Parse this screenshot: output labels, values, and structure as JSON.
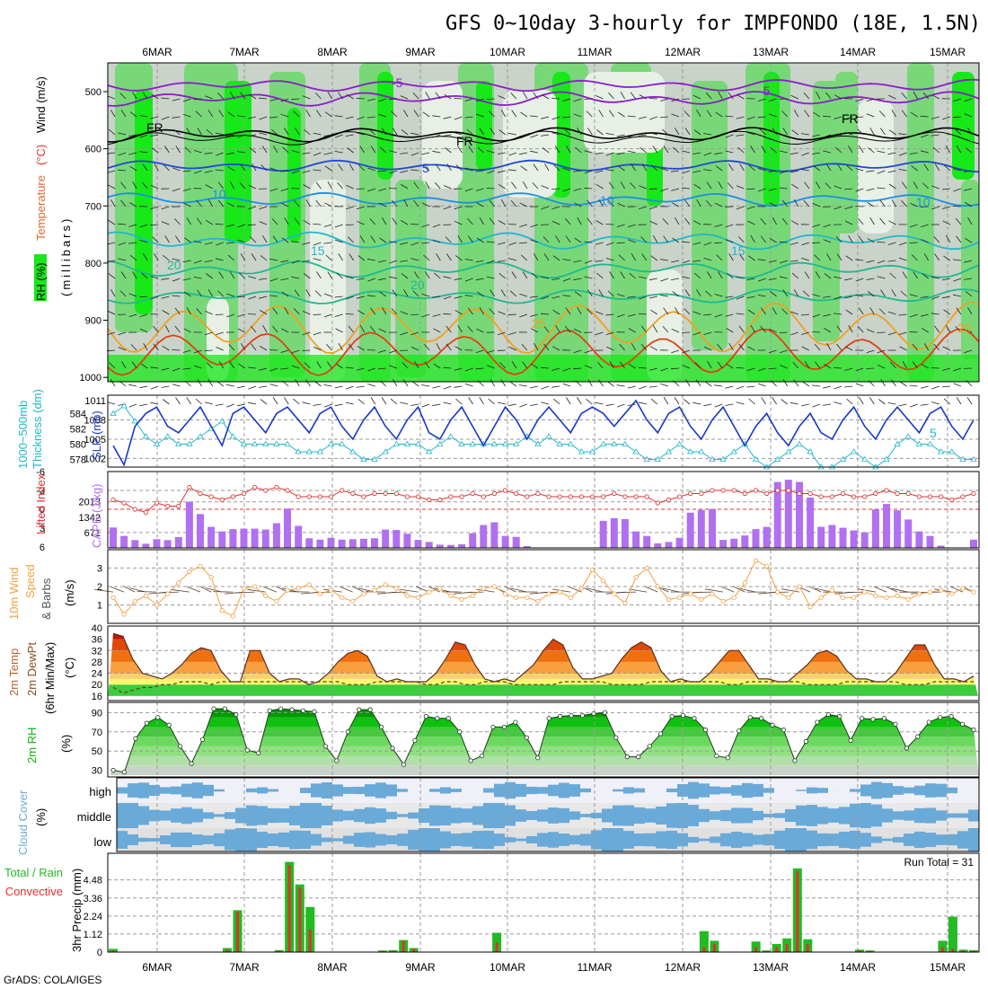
{
  "title": "GFS 0~10day 3-hourly for IMPFONDO (18E, 1.5N)",
  "date_labels": [
    "6MAR",
    "7MAR",
    "8MAR",
    "9MAR",
    "10MAR",
    "11MAR",
    "12MAR",
    "13MAR",
    "14MAR",
    "15MAR"
  ],
  "credit": "GrADS: COLA/IGES",
  "colors": {
    "rh_light": "#c9d3c9",
    "rh_pale": "#e8f0e6",
    "rh_green": "#78d878",
    "rh_bright": "#17e817",
    "temp_purple": "#8a1dc8",
    "temp_blue1": "#1f48d2",
    "temp_blue2": "#1c8fe0",
    "temp_cyan": "#21b8c8",
    "temp_teal": "#20b890",
    "temp_orange": "#f0a020",
    "temp_red": "#e04010",
    "temp_magenta": "#e0108a",
    "thickness": "#20b8c8",
    "slp": "#1838c8",
    "lifted_index": "#e03030",
    "cape": "#b070f0",
    "wind_speed": "#f0a040",
    "rh2m": "#10b010",
    "cloud": "#6aaad8",
    "precip_total": "#22bb22",
    "precip_conv": "#e03030"
  },
  "panel_labels": {
    "upper": {
      "rh": "RH (%)",
      "temperature": "Temperature",
      "temp_unit": "(°C)",
      "wind": "Wind (m/s)",
      "millibars": "(millibars)"
    },
    "slp": {
      "thickness": "1000~500mb",
      "thickness2": "Thickness (dm)",
      "slp": "SLP (mb)"
    },
    "cape": {
      "li": "Lifted Index",
      "cape": "CAPE (J/kg)"
    },
    "wind10": {
      "l1": "10m Wind",
      "l2": "Speed",
      "l3": "& Barbs",
      "unit": "(m/s)"
    },
    "temp2m": {
      "l1": "2m Temp",
      "l2": "2m DewPt",
      "l3": "(6hr Min/Max)",
      "unit": "(°C)"
    },
    "rh2m": {
      "l1": "2m RH",
      "unit": "(%)"
    },
    "cloud": {
      "l1": "Cloud Cover",
      "unit": "(%)",
      "levels": [
        "high",
        "middle",
        "low"
      ]
    },
    "precip": {
      "total": "Total / Rain",
      "conv": "Convective",
      "l3": "3hr Precip (mm)",
      "run_total": "Run Total = 31"
    }
  },
  "upper_air": {
    "pressure_ticks": [
      "500",
      "600",
      "700",
      "800",
      "900",
      "1000"
    ],
    "contour_labels": [
      "-5",
      "-5",
      "FR",
      "FR",
      "FR",
      "5",
      "10",
      "10",
      "15",
      "15",
      "20",
      "20",
      "25",
      "20",
      "10",
      "5"
    ]
  },
  "chart_data": [
    {
      "type": "line",
      "name": "SLP & Thickness",
      "x_hours_from_start_step": 3,
      "series": [
        {
          "name": "SLP (mb)",
          "axis": "right",
          "values": [
            1004,
            1001,
            1007,
            1009,
            1010,
            1007,
            1006,
            1008,
            1010,
            1007,
            1004,
            1009,
            1010,
            1008,
            1006,
            1009,
            1010,
            1008,
            1006,
            1009,
            1010,
            1007,
            1005,
            1008,
            1010,
            1007,
            1005,
            1008,
            1010,
            1006,
            1005,
            1008,
            1010,
            1007,
            1004,
            1007,
            1010,
            1008,
            1005,
            1008,
            1010,
            1008,
            1006,
            1009,
            1010,
            1009,
            1007,
            1009,
            1011,
            1008,
            1006,
            1009,
            1010,
            1007,
            1005,
            1008,
            1010,
            1007,
            1004,
            1007,
            1009,
            1006,
            1004,
            1007,
            1009,
            1006,
            1005,
            1008,
            1010,
            1007,
            1005,
            1008,
            1010,
            1008,
            1006,
            1009,
            1010,
            1007,
            1005,
            1008
          ]
        },
        {
          "name": "Thickness (dm)",
          "axis": "left",
          "values": [
            584,
            585,
            583,
            581,
            580,
            581,
            580,
            580,
            581,
            582,
            583,
            581,
            580,
            580,
            580,
            580,
            580,
            579,
            579,
            579,
            580,
            580,
            579,
            578,
            578,
            579,
            580,
            580,
            580,
            579,
            580,
            581,
            580,
            580,
            580,
            580,
            580,
            580,
            581,
            580,
            581,
            580,
            580,
            579,
            579,
            580,
            580,
            580,
            579,
            578,
            578,
            579,
            580,
            579,
            579,
            578,
            578,
            579,
            580,
            578,
            577,
            578,
            579,
            580,
            579,
            577,
            577,
            578,
            579,
            578,
            577,
            578,
            580,
            581,
            580,
            580,
            579,
            579,
            578,
            578
          ]
        }
      ],
      "left_axis": {
        "label": "Thickness (dm)",
        "ticks": [
          578,
          580,
          582,
          584
        ]
      },
      "right_axis": {
        "label": "SLP (mb)",
        "ticks": [
          1002,
          1005,
          1008,
          1011
        ]
      }
    },
    {
      "type": "bar",
      "name": "CAPE & Lifted Index",
      "series": [
        {
          "name": "CAPE (J/kg)",
          "values": [
            890,
            520,
            340,
            180,
            380,
            340,
            470,
            2013,
            1480,
            920,
            720,
            820,
            840,
            840,
            800,
            1080,
            1720,
            960,
            420,
            360,
            440,
            360,
            380,
            400,
            420,
            800,
            780,
            620,
            350,
            260,
            140,
            130,
            160,
            640,
            1000,
            1120,
            520,
            480,
            80,
            0,
            0,
            0,
            0,
            0,
            0,
            1180,
            1300,
            1260,
            720,
            520,
            200,
            260,
            440,
            1540,
            1660,
            1700,
            350,
            400,
            540,
            820,
            920,
            2880,
            2980,
            2880,
            2200,
            920,
            1000,
            880,
            760,
            680,
            1680,
            1920,
            1640,
            1240,
            720,
            520,
            100,
            0,
            0,
            360
          ]
        },
        {
          "name": "Lifted Index",
          "values": [
            -1.5,
            -1,
            0,
            0.5,
            -1,
            -0.5,
            -0.5,
            -3.5,
            -2.5,
            -2,
            -1.5,
            -2,
            -2.5,
            -3.5,
            -3,
            -3.5,
            -3,
            -2,
            -2,
            -2,
            -2,
            -3,
            -2.5,
            -2,
            -2.5,
            -2.5,
            -2.5,
            -2,
            -2,
            -1.5,
            -1.5,
            -2,
            -2,
            -2.5,
            -2,
            -2.5,
            -3,
            -2.5,
            -2,
            -2.5,
            -2,
            -2,
            -2,
            -2,
            -2,
            -2,
            -2.5,
            -2,
            -2,
            -2,
            -1,
            -1.5,
            -2,
            -2.5,
            -2.5,
            -3,
            -3,
            -3,
            -2.5,
            -3,
            -2.5,
            -3,
            -3,
            -2.5,
            -2.5,
            -2,
            -2,
            -2.5,
            -2,
            -2,
            -2.5,
            -3,
            -2.5,
            -2.5,
            -2,
            -2,
            -2,
            -1.5,
            -2,
            -2.5
          ]
        }
      ],
      "left_axis": {
        "label": "Lifted Index",
        "ticks": [
          "-6",
          "-3",
          "0",
          "3",
          "6"
        ]
      },
      "right_axis": {
        "label": "CAPE (J/kg)",
        "ticks": [
          "671",
          "1342",
          "2013"
        ]
      }
    },
    {
      "type": "line",
      "name": "10m Wind Speed",
      "series": [
        {
          "name": "Speed (m/s)",
          "values": [
            1.4,
            0.5,
            1.2,
            1.5,
            1.0,
            1.6,
            2.2,
            2.8,
            3.1,
            2.5,
            0.7,
            0.4,
            1.9,
            2.0,
            1.5,
            1.2,
            1.8,
            1.9,
            2.1,
            1.6,
            1.8,
            1.4,
            1.2,
            1.6,
            1.8,
            2.1,
            1.9,
            1.5,
            1.4,
            1.7,
            1.9,
            1.5,
            1.3,
            1.5,
            1.9,
            2.0,
            1.6,
            1.4,
            1.4,
            1.2,
            1.6,
            1.7,
            1.4,
            1.9,
            2.9,
            2.3,
            1.6,
            1.1,
            2.5,
            3.0,
            2.0,
            1.3,
            1.4,
            1.6,
            1.3,
            1.6,
            1.2,
            1.4,
            2.2,
            3.4,
            3.1,
            1.7,
            1.4,
            2.0,
            0.9,
            1.4,
            1.8,
            1.4,
            1.4,
            1.7,
            1.5,
            1.4,
            1.5,
            1.3,
            1.6,
            1.7,
            1.8,
            1.6,
            1.9,
            1.7
          ]
        }
      ],
      "left_axis": {
        "label": "(m/s)",
        "ticks": [
          "1",
          "2",
          "3"
        ]
      }
    },
    {
      "type": "area",
      "name": "2m Temp / DewPt",
      "series": [
        {
          "name": "2m Temp",
          "values": [
            38,
            37,
            29,
            24,
            23,
            22,
            24,
            27,
            31,
            33,
            32,
            25,
            21,
            21,
            32,
            32,
            24,
            21,
            22,
            22,
            20,
            21,
            24,
            28,
            31,
            32,
            30,
            23,
            21,
            22,
            21,
            21,
            21,
            24,
            29,
            35,
            34,
            27,
            22,
            21,
            22,
            21,
            24,
            27,
            32,
            36,
            34,
            26,
            22,
            22,
            23,
            24,
            29,
            33,
            35,
            33,
            25,
            21,
            22,
            21,
            21,
            24,
            28,
            32,
            32,
            27,
            22,
            22,
            21,
            21,
            24,
            27,
            31,
            32,
            30,
            25,
            22,
            22,
            21,
            21,
            24,
            29,
            34,
            34,
            27,
            22,
            22,
            21,
            23
          ]
        },
        {
          "name": "2m DewPt",
          "values": [
            19,
            17,
            18,
            19,
            19,
            20,
            20,
            21,
            21,
            21,
            20,
            21,
            21,
            21,
            21,
            21,
            21,
            21,
            21,
            21,
            21,
            21,
            21,
            21,
            20,
            20,
            20,
            21,
            21,
            21,
            21,
            21,
            20,
            20,
            21,
            21,
            20,
            20,
            21,
            21,
            21,
            20,
            20,
            20,
            20,
            20,
            21,
            21,
            21,
            21,
            21,
            20,
            20,
            20,
            20,
            21,
            21,
            21,
            21,
            21,
            21,
            21,
            21,
            20,
            20,
            21,
            21,
            21,
            21,
            21,
            21,
            20,
            20,
            20,
            20,
            21,
            21,
            21,
            21,
            21,
            21,
            20,
            20,
            20,
            21,
            21,
            21,
            21,
            21
          ]
        }
      ],
      "left_axis": {
        "label": "(°C)",
        "ticks": [
          "16",
          "20",
          "24",
          "28",
          "32",
          "36",
          "40"
        ]
      }
    },
    {
      "type": "area",
      "name": "2m RH",
      "series": [
        {
          "name": "2m RH (%)",
          "values": [
            30,
            28,
            63,
            79,
            85,
            77,
            55,
            37,
            62,
            94,
            94,
            88,
            51,
            48,
            92,
            94,
            93,
            92,
            91,
            55,
            40,
            70,
            93,
            93,
            75,
            53,
            36,
            61,
            86,
            84,
            84,
            70,
            40,
            45,
            75,
            75,
            80,
            64,
            43,
            84,
            86,
            87,
            87,
            89,
            90,
            64,
            44,
            44,
            55,
            68,
            86,
            87,
            84,
            72,
            45,
            43,
            71,
            85,
            84,
            77,
            72,
            40,
            60,
            80,
            88,
            86,
            61,
            84,
            83,
            84,
            78,
            53,
            65,
            80,
            85,
            86,
            78,
            72
          ]
        }
      ],
      "left_axis": {
        "label": "(%)",
        "ticks": [
          "30",
          "50",
          "70",
          "90"
        ]
      }
    },
    {
      "type": "bar",
      "name": "3hr Precip",
      "series": [
        {
          "name": "Total / Rain",
          "values": [
            0.2,
            0,
            0,
            0,
            0,
            0,
            0,
            0,
            0,
            0,
            0,
            0.25,
            2.6,
            0,
            0,
            0,
            0.12,
            5.6,
            4.2,
            2.8,
            0,
            0,
            0,
            0,
            0,
            0,
            0.1,
            0.12,
            0.75,
            0.25,
            0,
            0,
            0,
            0,
            0,
            0,
            0,
            1.2,
            0,
            0,
            0,
            0,
            0,
            0,
            0,
            0,
            0,
            0,
            0,
            0,
            0,
            0,
            0,
            0,
            0,
            0,
            0,
            1.3,
            0.7,
            0,
            0,
            0,
            0.65,
            0.1,
            0.5,
            0.85,
            5.2,
            0.8,
            0,
            0,
            0,
            0,
            0.15,
            0.1,
            0,
            0,
            0,
            0,
            0,
            0,
            0.7,
            2.2,
            0.15,
            0.12
          ]
        },
        {
          "name": "Convective",
          "values": [
            0.1,
            0,
            0,
            0,
            0,
            0,
            0,
            0,
            0,
            0,
            0,
            0.15,
            2.5,
            0,
            0,
            0,
            0.08,
            5.4,
            4.0,
            1.4,
            0,
            0,
            0,
            0,
            0,
            0,
            0.05,
            0.08,
            0.7,
            0.2,
            0,
            0,
            0,
            0,
            0,
            0,
            0,
            0.6,
            0,
            0,
            0,
            0,
            0,
            0,
            0,
            0,
            0,
            0,
            0,
            0,
            0,
            0,
            0,
            0,
            0,
            0,
            0,
            0.3,
            0.5,
            0,
            0,
            0,
            0.3,
            0.05,
            0.3,
            0.5,
            5.0,
            0.5,
            0,
            0,
            0,
            0,
            0.1,
            0.08,
            0,
            0,
            0,
            0,
            0,
            0,
            0.3,
            0.2,
            0.1,
            0.08
          ]
        }
      ],
      "left_axis": {
        "label": "3hr Precip (mm)",
        "ticks": [
          "0",
          "1.12",
          "2.24",
          "3.36",
          "4.48"
        ]
      }
    }
  ]
}
